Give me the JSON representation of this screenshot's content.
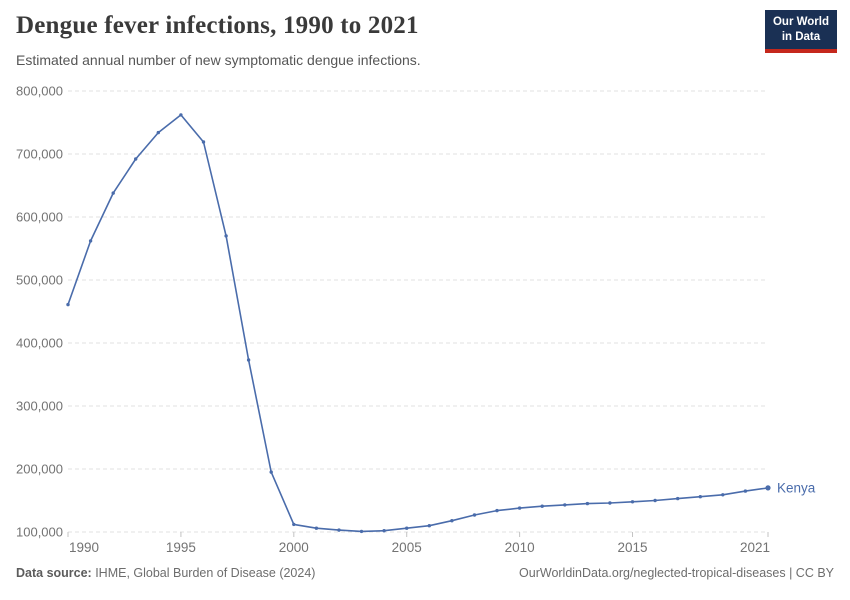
{
  "header": {
    "logo": {
      "line1": "Our World",
      "line2": "in Data",
      "bg_color": "#1a3054",
      "accent_color": "#c5281c"
    }
  },
  "chart_data": {
    "type": "line",
    "title": "Dengue fever infections, 1990 to 2021",
    "subtitle": "Estimated annual number of new symptomatic dengue infections.",
    "xlabel": "",
    "ylabel": "",
    "xlim": [
      1990,
      2021
    ],
    "ylim": [
      100000,
      800000
    ],
    "grid": "horizontal-dashed",
    "grid_color": "#e0e0e0",
    "tick_color": "#c3c3c3",
    "axis_label_color": "#737373",
    "xticks": [
      1990,
      1995,
      2000,
      2005,
      2010,
      2015,
      2021
    ],
    "xtick_labels": [
      "1990",
      "1995",
      "2000",
      "2005",
      "2010",
      "2015",
      "2021"
    ],
    "yticks": [
      100000,
      200000,
      300000,
      400000,
      500000,
      600000,
      700000,
      800000
    ],
    "ytick_labels": [
      "100,000",
      "200,000",
      "300,000",
      "400,000",
      "500,000",
      "600,000",
      "700,000",
      "800,000"
    ],
    "legend_position": "end-of-line",
    "end_label": "Kenya",
    "series": [
      {
        "name": "Kenya",
        "color": "#4a6cab",
        "x": [
          1990,
          1991,
          1992,
          1993,
          1994,
          1995,
          1996,
          1997,
          1998,
          1999,
          2000,
          2001,
          2002,
          2003,
          2004,
          2005,
          2006,
          2007,
          2008,
          2009,
          2010,
          2011,
          2012,
          2013,
          2014,
          2015,
          2016,
          2017,
          2018,
          2019,
          2020,
          2021
        ],
        "values": [
          461000,
          562000,
          638000,
          692000,
          734000,
          762000,
          719000,
          570000,
          373000,
          195000,
          112000,
          106000,
          103000,
          101000,
          102000,
          106000,
          110000,
          118000,
          127000,
          134000,
          138000,
          141000,
          143000,
          145000,
          146000,
          148000,
          150000,
          153000,
          156000,
          159000,
          165000,
          170000
        ]
      }
    ]
  },
  "footer": {
    "source_label": "Data source:",
    "source_text": " IHME, Global Burden of Disease (2024)",
    "right_text": "OurWorldinData.org/neglected-tropical-diseases | CC BY"
  }
}
